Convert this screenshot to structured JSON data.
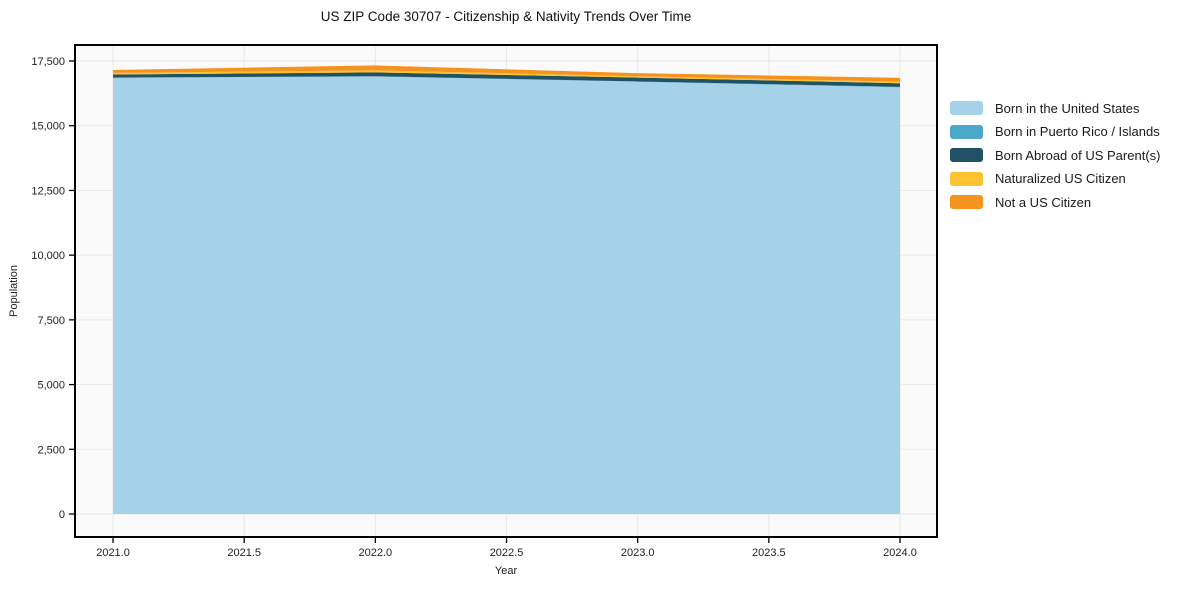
{
  "figure": {
    "title": "US ZIP Code 30707 - Citizenship & Nativity Trends Over Time",
    "xlabel": "Year",
    "ylabel": "Population"
  },
  "chart_data": {
    "type": "area",
    "stacked": true,
    "title": "US ZIP Code 30707 - Citizenship & Nativity Trends Over Time",
    "xlabel": "Year",
    "ylabel": "Population",
    "x": [
      2021,
      2022,
      2023,
      2024
    ],
    "series": [
      {
        "name": "Born in the United States",
        "color": "#a5d2e8",
        "values": [
          16850,
          16900,
          16700,
          16480
        ]
      },
      {
        "name": "Born in Puerto Rico / Islands",
        "color": "#4aa8c9",
        "values": [
          10,
          10,
          10,
          20
        ]
      },
      {
        "name": "Born Abroad of US Parent(s)",
        "color": "#1f5265",
        "values": [
          120,
          150,
          150,
          140
        ]
      },
      {
        "name": "Naturalized US Citizen",
        "color": "#fcc22f",
        "values": [
          60,
          80,
          50,
          60
        ]
      },
      {
        "name": "Not a US Citizen",
        "color": "#f6921e",
        "values": [
          110,
          190,
          120,
          150
        ]
      }
    ],
    "x_range": [
      2020.855,
      2024.141
    ],
    "y_range": [
      -888,
      18118
    ],
    "x_ticks": [
      {
        "value": 2021.0,
        "label": "2021.0"
      },
      {
        "value": 2021.5,
        "label": "2021.5"
      },
      {
        "value": 2022.0,
        "label": "2022.0"
      },
      {
        "value": 2022.5,
        "label": "2022.5"
      },
      {
        "value": 2023.0,
        "label": "2023.0"
      },
      {
        "value": 2023.5,
        "label": "2023.5"
      },
      {
        "value": 2024.0,
        "label": "2024.0"
      }
    ],
    "y_ticks": [
      {
        "value": 0,
        "label": "0"
      },
      {
        "value": 2500,
        "label": "2,500"
      },
      {
        "value": 5000,
        "label": "5,000"
      },
      {
        "value": 7500,
        "label": "7,500"
      },
      {
        "value": 10000,
        "label": "10,000"
      },
      {
        "value": 12500,
        "label": "12,500"
      },
      {
        "value": 15000,
        "label": "15,000"
      },
      {
        "value": 17500,
        "label": "17,500"
      }
    ],
    "grid": true,
    "legend_position": "right",
    "colors": {
      "plot_background": "#fafafa",
      "gridline": "#e7e7e7",
      "spine": "#000000",
      "tick_label": "#222222"
    }
  }
}
